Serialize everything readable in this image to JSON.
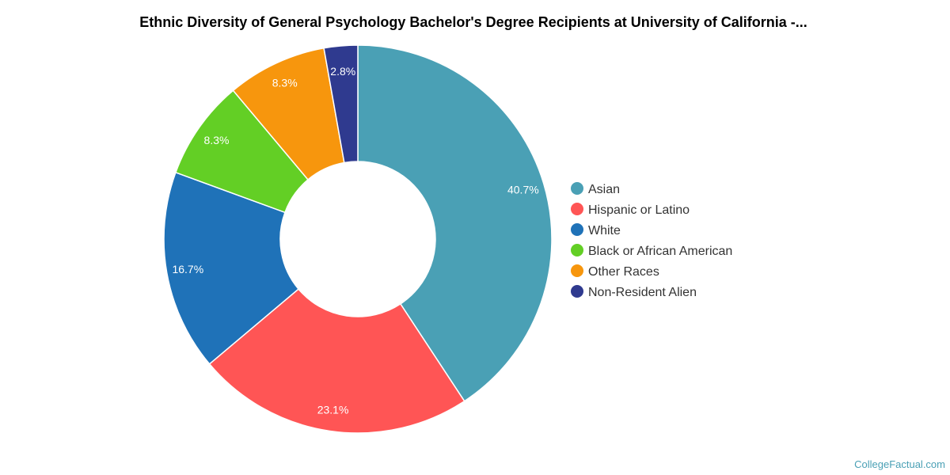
{
  "chart_data": {
    "type": "pie",
    "title": "Ethnic Diversity of General Psychology Bachelor's Degree Recipients at University of California -...",
    "hole": true,
    "categories": [
      "Asian",
      "Hispanic or Latino",
      "White",
      "Black or African American",
      "Other Races",
      "Non-Resident Alien"
    ],
    "values": [
      40.7,
      23.1,
      16.7,
      8.3,
      8.3,
      2.8
    ],
    "labels": [
      "40.7%",
      "23.1%",
      "16.7%",
      "8.3%",
      "8.3%",
      "2.8%"
    ],
    "colors": [
      "#4aa0b5",
      "#ff5555",
      "#1f72b8",
      "#63cf25",
      "#f7960d",
      "#2f3a8f"
    ],
    "legend_position": "right"
  },
  "credit": "CollegeFactual.com"
}
